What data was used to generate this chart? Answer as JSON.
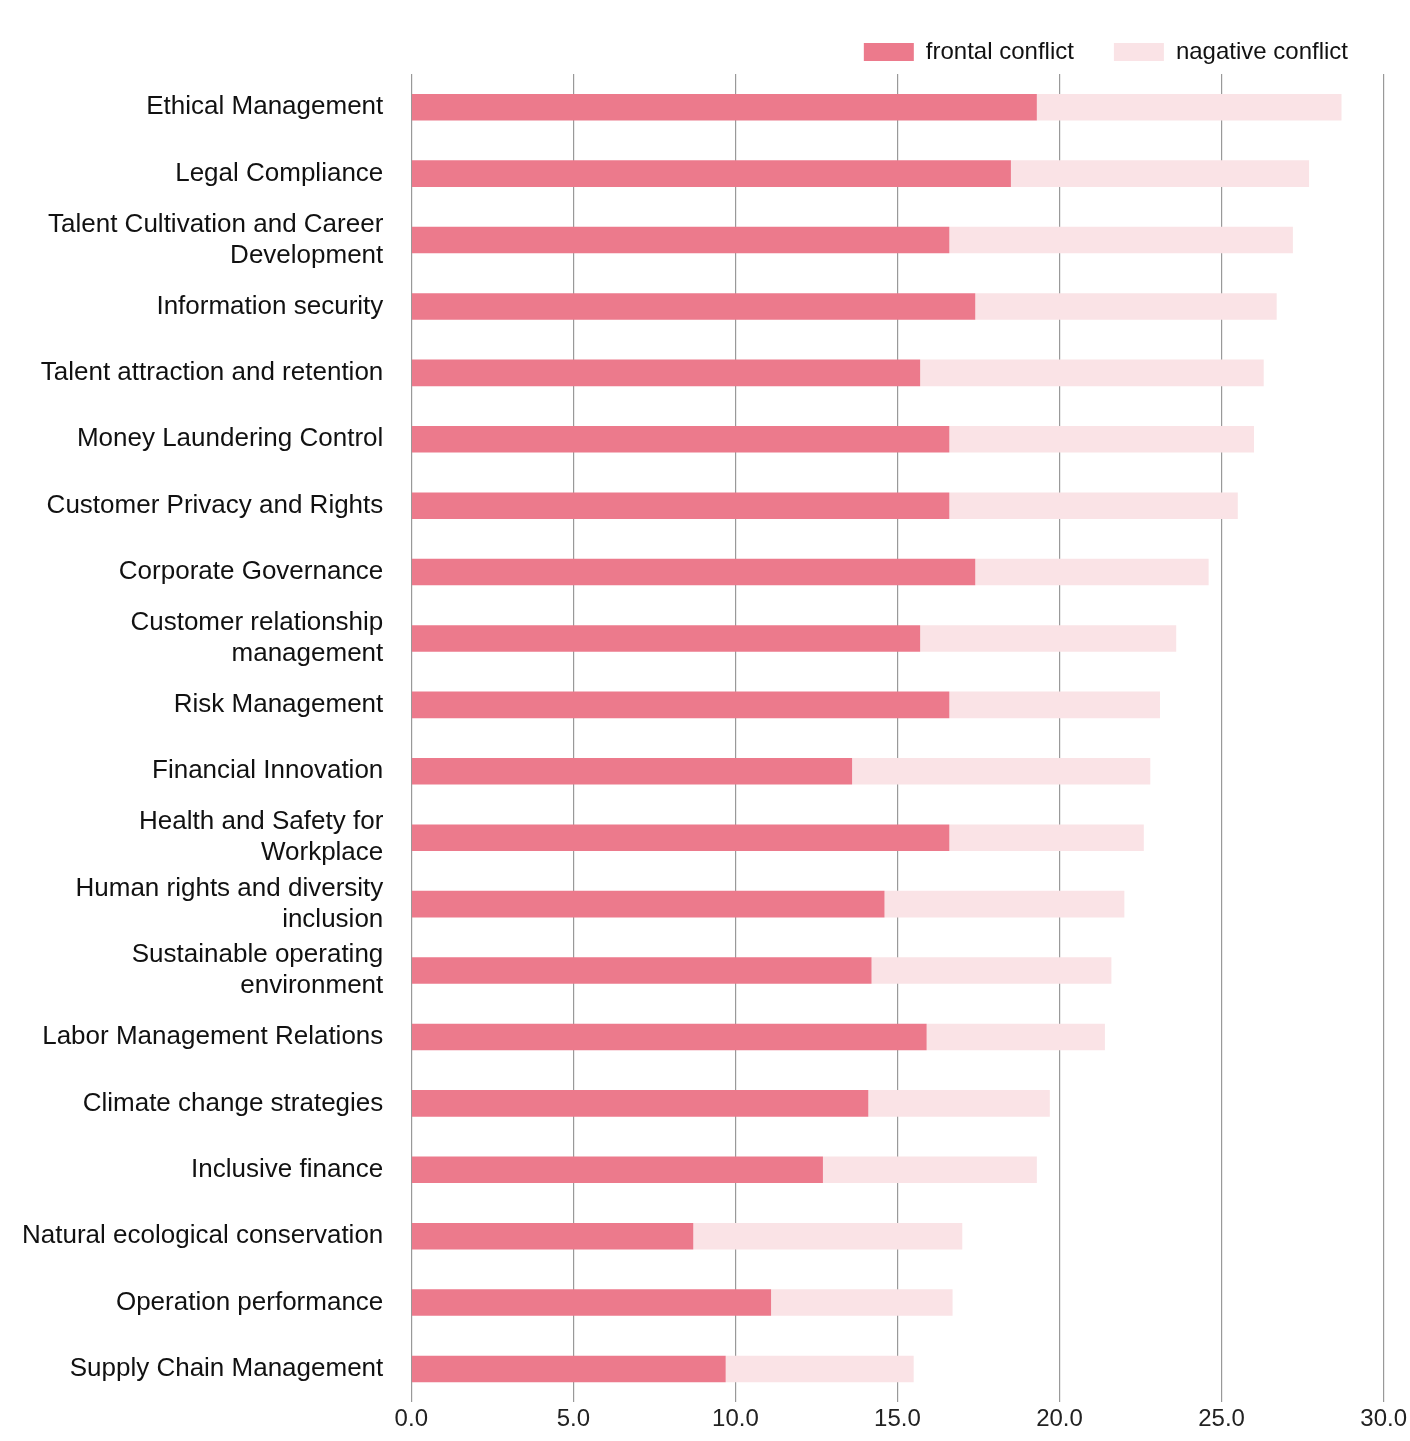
{
  "chart_data": {
    "type": "bar",
    "orientation": "horizontal",
    "stacked": true,
    "grid": "x",
    "legend": "top right",
    "categories": [
      "Ethical Management",
      "Legal Compliance",
      "Talent Cultivation and Career Development",
      "Information security",
      "Talent attraction and retention",
      "Money Laundering Control",
      "Customer Privacy and Rights",
      "Corporate Governance",
      "Customer relationship management",
      "Risk Management",
      "Financial Innovation",
      "Health and Safety for Workplace",
      "Human rights and diversity inclusion",
      "Sustainable operating environment",
      "Labor Management Relations",
      "Climate change strategies",
      "Inclusive finance",
      "Natural ecological conservation",
      "Operation performance",
      "Supply Chain Management"
    ],
    "series": [
      {
        "name": "frontal conflict",
        "color": "#ec7a8c",
        "values": [
          19.3,
          18.5,
          16.6,
          17.4,
          15.7,
          16.6,
          16.6,
          17.4,
          15.7,
          16.6,
          13.6,
          16.6,
          14.6,
          14.2,
          15.9,
          14.1,
          12.7,
          8.7,
          11.1,
          9.7
        ]
      },
      {
        "name": "nagative conflict",
        "color": "#fae3e6",
        "values": [
          9.4,
          9.2,
          10.6,
          9.3,
          10.6,
          9.4,
          8.9,
          7.2,
          7.9,
          6.5,
          9.2,
          6.0,
          7.4,
          7.4,
          5.5,
          5.6,
          6.6,
          8.3,
          5.6,
          5.8
        ]
      }
    ],
    "xlim": [
      0,
      30
    ],
    "xticks": [
      {
        "value": 0,
        "label": "0.0"
      },
      {
        "value": 5,
        "label": "5.0"
      },
      {
        "value": 10,
        "label": "10.0"
      },
      {
        "value": 15,
        "label": "15.0"
      },
      {
        "value": 20,
        "label": "20.0"
      },
      {
        "value": 25,
        "label": "25.0"
      },
      {
        "value": 30,
        "label": "30.0"
      }
    ]
  }
}
